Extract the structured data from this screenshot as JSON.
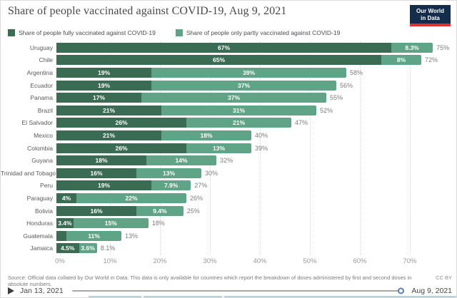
{
  "header": {
    "title": "Share of people vaccinated against COVID-19, Aug 9, 2021",
    "logo_line1": "Our World",
    "logo_line2": "in Data"
  },
  "chart_data": {
    "type": "bar",
    "orientation": "horizontal",
    "stacked": true,
    "title": "Share of people vaccinated against COVID-19, Aug 9, 2021",
    "categories": [
      "Uruguay",
      "Chile",
      "Argentina",
      "Ecuador",
      "Panama",
      "Brazil",
      "El Salvador",
      "Mexico",
      "Colombia",
      "Guyana",
      "Trinidad and Tobago",
      "Peru",
      "Paraguay",
      "Bolivia",
      "Honduras",
      "Guatemala",
      "Jamaica"
    ],
    "series": [
      {
        "name": "Share of people fully vaccinated against COVID-19",
        "color": "#3a6c54",
        "values": [
          67,
          65,
          19,
          19,
          17,
          21,
          26,
          21,
          26,
          18,
          16,
          19,
          4,
          16,
          3.4,
          2,
          4.5
        ],
        "labels": [
          "67%",
          "65%",
          "19%",
          "19%",
          "17%",
          "21%",
          "26%",
          "21%",
          "26%",
          "18%",
          "16%",
          "19%",
          "4%",
          "16%",
          "3.4%",
          "",
          "4.5%"
        ]
      },
      {
        "name": "Share of people only partly vaccinated against COVID-19",
        "color": "#5fa486",
        "values": [
          8.3,
          8,
          39,
          37,
          37,
          31,
          21,
          18,
          13,
          14,
          13,
          7.9,
          22,
          9.4,
          15,
          11,
          3.6
        ],
        "labels": [
          "8.3%",
          "8%",
          "39%",
          "37%",
          "37%",
          "31%",
          "21%",
          "18%",
          "13%",
          "14%",
          "13%",
          "7.9%",
          "22%",
          "9.4%",
          "15%",
          "11%",
          "3.6%"
        ]
      }
    ],
    "totals": [
      "75%",
      "72%",
      "58%",
      "56%",
      "55%",
      "52%",
      "47%",
      "40%",
      "39%",
      "32%",
      "30%",
      "27%",
      "26%",
      "25%",
      "18%",
      "13%",
      "8.1%"
    ],
    "x_ticks": [
      "0%",
      "10%",
      "20%",
      "30%",
      "40%",
      "50%",
      "60%",
      "70%"
    ],
    "x_tick_values": [
      0,
      10,
      20,
      30,
      40,
      50,
      60,
      70
    ],
    "xlim": [
      0,
      78
    ],
    "grid": "dotted-vertical",
    "legend_position": "top-left"
  },
  "footer": {
    "source": "Source: Official data collated by Our World in Data. This data is only available for countries which report the breakdown of doses administered by first and second doses in absolute numbers.",
    "license": "CC BY"
  },
  "timeline": {
    "start_date": "Jan 13, 2021",
    "end_date": "Aug 9, 2021"
  }
}
